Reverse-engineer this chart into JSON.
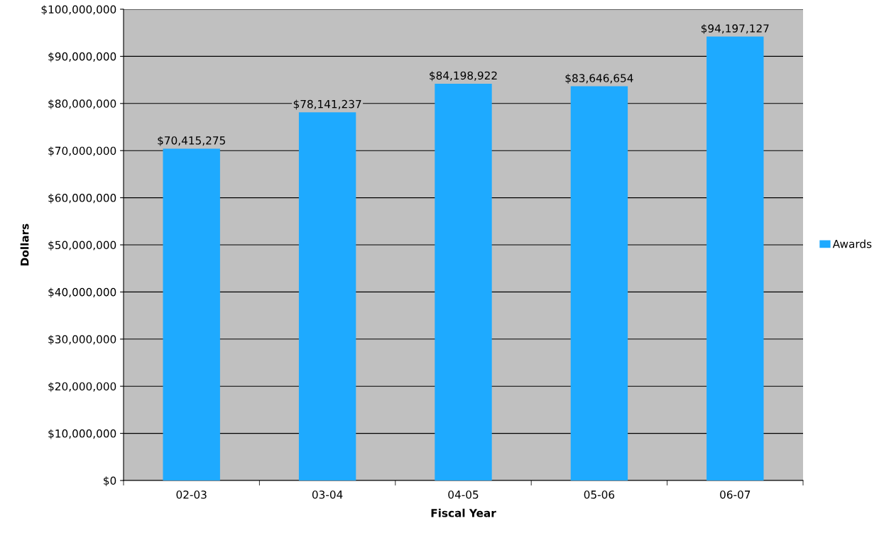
{
  "chart_data": {
    "type": "bar",
    "xlabel": "Fiscal Year",
    "ylabel": "Dollars",
    "categories": [
      "02-03",
      "03-04",
      "04-05",
      "05-06",
      "06-07"
    ],
    "series": [
      {
        "name": "Awards",
        "color": "#1eaaff",
        "values": [
          70415275,
          78141237,
          84198922,
          83646654,
          94197127
        ],
        "value_labels": [
          "$70,415,275",
          "$78,141,237",
          "$84,198,922",
          "$83,646,654",
          "$94,197,127"
        ]
      }
    ],
    "ylim": [
      0,
      100000000
    ],
    "yticks": [
      {
        "value": 0,
        "label": "$0"
      },
      {
        "value": 10000000,
        "label": "$10,000,000"
      },
      {
        "value": 20000000,
        "label": "$20,000,000"
      },
      {
        "value": 30000000,
        "label": "$30,000,000"
      },
      {
        "value": 40000000,
        "label": "$40,000,000"
      },
      {
        "value": 50000000,
        "label": "$50,000,000"
      },
      {
        "value": 60000000,
        "label": "$60,000,000"
      },
      {
        "value": 70000000,
        "label": "$70,000,000"
      },
      {
        "value": 80000000,
        "label": "$80,000,000"
      },
      {
        "value": 90000000,
        "label": "$90,000,000"
      },
      {
        "value": 100000000,
        "label": "$100,000,000"
      }
    ],
    "grid": "y",
    "legend": "right"
  }
}
